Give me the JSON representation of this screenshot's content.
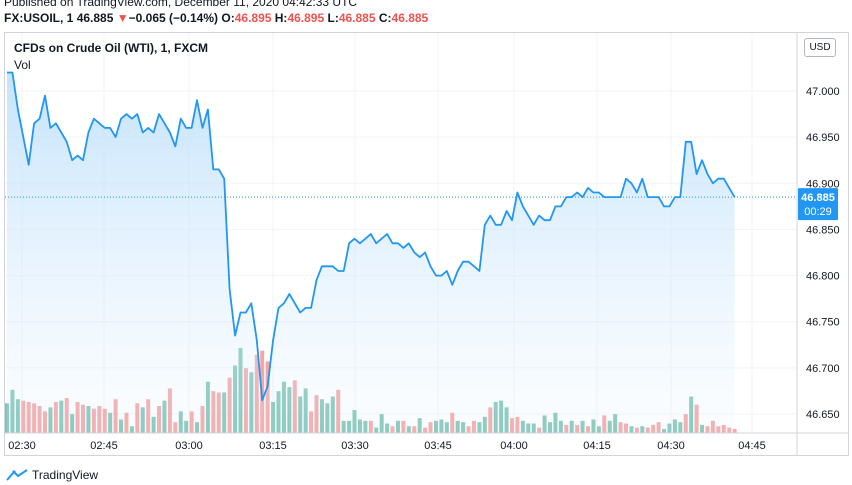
{
  "header": {
    "published": "Published on TradingView.com, December 11, 2020 04:42:33 UTC",
    "symbol": "FX:USOIL, 1",
    "last": "46.885",
    "arrow": "▼",
    "change": "−0.065 (−0.14%)",
    "o_label": "O:",
    "o_value": "46.895",
    "h_label": "H:",
    "h_value": "46.895",
    "l_label": "L:",
    "l_value": "46.885",
    "c_label": "C:",
    "c_value": "46.885"
  },
  "chart_header": {
    "title": "CFDs on Crude Oil (WTI), 1, FXCM",
    "vol": "Vol",
    "currency": "USD"
  },
  "footer": {
    "brand": "TradingView"
  },
  "colors": {
    "line": "#2196f3",
    "area_top": "#bbdefb",
    "vol_up": "#7fc4b5",
    "vol_down": "#f4a5a5",
    "price_badge": "#2196f3"
  },
  "chart_data": {
    "type": "area",
    "time_start": "02:25",
    "interval_minutes": 1,
    "x_ticks": [
      "02:30",
      "02:45",
      "03:00",
      "03:15",
      "03:30",
      "03:45",
      "04:00",
      "04:15",
      "04:30",
      "04:45"
    ],
    "ylim": [
      46.625,
      47.045
    ],
    "y_ticks": [
      46.65,
      46.7,
      46.75,
      46.8,
      46.85,
      46.9,
      46.95,
      47.0
    ],
    "last_price": "46.885",
    "countdown": "00:29",
    "prices": [
      47.02,
      47.02,
      46.98,
      46.95,
      46.92,
      46.965,
      46.97,
      46.995,
      46.96,
      46.965,
      46.955,
      46.945,
      46.925,
      46.93,
      46.925,
      46.955,
      46.97,
      46.965,
      46.96,
      46.96,
      46.95,
      46.97,
      46.975,
      46.97,
      46.975,
      46.955,
      46.96,
      46.955,
      46.975,
      46.965,
      46.955,
      46.94,
      46.97,
      46.96,
      46.96,
      46.99,
      46.96,
      46.98,
      46.915,
      46.915,
      46.905,
      46.785,
      46.735,
      46.76,
      46.76,
      46.77,
      46.73,
      46.665,
      46.68,
      46.73,
      46.765,
      46.77,
      46.78,
      46.77,
      46.76,
      46.765,
      46.765,
      46.795,
      46.81,
      46.81,
      46.81,
      46.805,
      46.805,
      46.835,
      46.84,
      46.835,
      46.84,
      46.845,
      46.835,
      46.84,
      46.845,
      46.835,
      46.835,
      46.83,
      46.835,
      46.825,
      46.82,
      46.825,
      46.81,
      46.8,
      46.8,
      46.805,
      46.79,
      46.805,
      46.815,
      46.815,
      46.81,
      46.805,
      46.855,
      46.865,
      46.855,
      46.855,
      46.87,
      46.86,
      46.89,
      46.875,
      46.865,
      46.855,
      46.865,
      46.86,
      46.86,
      46.875,
      46.875,
      46.885,
      46.885,
      46.89,
      46.885,
      46.895,
      46.89,
      46.89,
      46.885,
      46.885,
      46.885,
      46.885,
      46.905,
      46.9,
      46.89,
      46.905,
      46.885,
      46.885,
      46.885,
      46.875,
      46.875,
      46.885,
      46.885,
      46.945,
      46.945,
      46.91,
      46.925,
      46.91,
      46.9,
      46.905,
      46.905,
      46.895,
      46.885
    ],
    "volume": [
      22,
      32,
      25,
      24,
      23,
      22,
      20,
      16,
      19,
      23,
      24,
      26,
      14,
      23,
      21,
      20,
      18,
      20,
      18,
      15,
      25,
      10,
      15,
      5,
      22,
      19,
      25,
      12,
      20,
      24,
      33,
      8,
      16,
      9,
      16,
      8,
      20,
      38,
      31,
      30,
      30,
      41,
      50,
      63,
      48,
      45,
      58,
      61,
      53,
      23,
      31,
      38,
      34,
      39,
      27,
      33,
      16,
      28,
      25,
      22,
      27,
      32,
      9,
      9,
      17,
      10,
      9,
      9,
      4,
      14,
      7,
      5,
      9,
      9,
      5,
      5,
      11,
      4,
      8,
      9,
      10,
      8,
      15,
      9,
      8,
      5,
      9,
      8,
      12,
      19,
      23,
      24,
      19,
      11,
      12,
      9,
      7,
      7,
      4,
      13,
      8,
      15,
      9,
      6,
      9,
      6,
      9,
      5,
      10,
      5,
      13,
      9,
      14,
      8,
      7,
      5,
      4,
      5,
      4,
      6,
      8,
      3,
      7,
      10,
      8,
      14,
      27,
      21,
      6,
      5,
      9,
      5,
      6,
      4,
      3
    ],
    "volume_up": [
      true,
      true,
      true,
      false,
      false,
      false,
      false,
      false,
      true,
      false,
      true,
      false,
      true,
      false,
      false,
      true,
      false,
      false,
      false,
      true,
      false,
      true,
      false,
      true,
      false,
      true,
      false,
      true,
      false,
      true,
      false,
      false,
      true,
      true,
      false,
      true,
      false,
      true,
      false,
      false,
      true,
      false,
      true,
      true,
      false,
      true,
      false,
      false,
      false,
      true,
      true,
      true,
      true,
      false,
      true,
      true,
      false,
      false,
      true,
      true,
      true,
      false,
      true,
      true,
      true,
      true,
      true,
      false,
      true,
      true,
      true,
      false,
      true,
      false,
      true,
      false,
      true,
      false,
      false,
      true,
      true,
      true,
      false,
      true,
      true,
      false,
      false,
      true,
      true,
      false,
      true,
      true,
      true,
      false,
      false,
      true,
      true,
      true,
      false,
      true,
      true,
      true,
      true,
      false,
      true,
      false,
      true,
      false,
      true,
      true,
      false,
      true,
      true,
      false,
      false,
      true,
      false,
      true,
      false,
      false,
      false,
      true,
      true,
      true,
      true,
      false,
      true,
      false,
      true,
      false,
      false,
      false,
      false,
      false,
      false
    ]
  }
}
